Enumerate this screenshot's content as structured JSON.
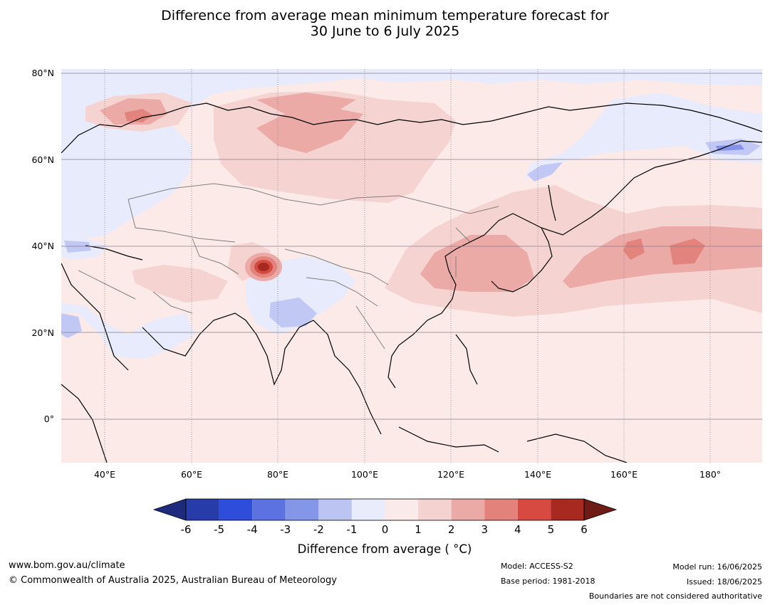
{
  "title_line1": "Difference from average mean minimum temperature forecast for",
  "title_line2": "30 June to 6 July 2025",
  "map": {
    "lat_labels": [
      "80°N",
      "60°N",
      "40°N",
      "20°N",
      "0°"
    ],
    "lon_labels": [
      "40°E",
      "60°E",
      "80°E",
      "100°E",
      "120°E",
      "140°E",
      "160°E",
      "180°"
    ],
    "colors": {
      "ocean_base": "#fbeae8",
      "cool_light": "#e8ebfb",
      "cool_mid": "#c0c8f3",
      "cool_strong": "#8592e8",
      "warm_1": "#f5d3d1",
      "warm_2": "#ebaaa6",
      "warm_3": "#e3837d",
      "warm_4": "#d44b40",
      "warm_5": "#a8291f",
      "coast": "#000000",
      "border": "#808080",
      "grid": "#8a7f8f"
    }
  },
  "colorbar": {
    "ticks": [
      "-6",
      "-5",
      "-4",
      "-3",
      "-2",
      "-1",
      "0",
      "1",
      "2",
      "3",
      "4",
      "5",
      "6"
    ],
    "colors": [
      "#1e2b7d",
      "#273ca9",
      "#2f4ddb",
      "#5c72e0",
      "#8496e8",
      "#bcc5f2",
      "#e9ecfb",
      "#fbeaea",
      "#f4d2d0",
      "#ebaaa6",
      "#e3817b",
      "#d64a42",
      "#a8291f",
      "#6e1c15"
    ],
    "label": "Difference from average ( °C)"
  },
  "footer": {
    "url": "www.bom.gov.au/climate",
    "copyright": "© Commonwealth of Australia 2025, Australian Bureau of Meteorology",
    "model": "Model: ACCESS-S2",
    "base_period": "Base period: 1981-2018",
    "model_run": "Model run: 16/06/2025",
    "issued": "Issued: 18/06/2025",
    "disclaimer": "Boundaries are not considered authoritative"
  }
}
